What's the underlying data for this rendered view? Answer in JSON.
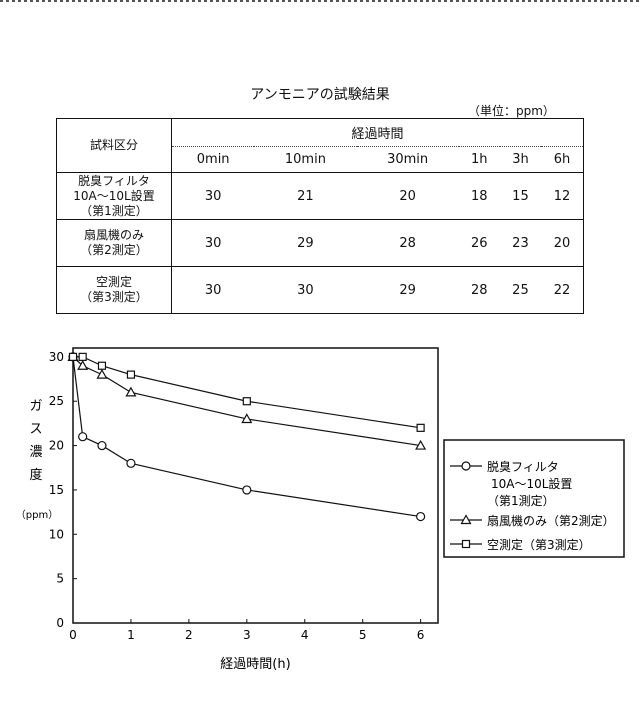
{
  "table": {
    "title": "アンモニアの試験結果",
    "unit_note": "（単位：ppm）",
    "category_header": "試料区分",
    "group_header": "経過時間",
    "columns": [
      "0min",
      "10min",
      "30min",
      "1h",
      "3h",
      "6h"
    ],
    "rows": [
      {
        "label": [
          "脱臭フィルタ",
          "10A～10L設置",
          "（第1測定）"
        ],
        "values": [
          "30",
          "21",
          "20",
          "18",
          "15",
          "12"
        ]
      },
      {
        "label": [
          "扇風機のみ",
          "（第2測定）"
        ],
        "values": [
          "30",
          "29",
          "28",
          "26",
          "23",
          "20"
        ]
      },
      {
        "label": [
          "空測定",
          "（第3測定）"
        ],
        "values": [
          "30",
          "30",
          "29",
          "28",
          "25",
          "22"
        ]
      }
    ]
  },
  "chart_data": {
    "type": "line",
    "xlabel": "経過時間(h)",
    "ylabel": [
      "ガ",
      "ス",
      "濃",
      "度"
    ],
    "ylabel_unit": "（ppm）",
    "xlim": [
      0,
      6.3
    ],
    "ylim": [
      0,
      31
    ],
    "xticks": [
      0,
      1,
      2,
      3,
      4,
      5,
      6
    ],
    "yticks": [
      0,
      5,
      10,
      15,
      20,
      25,
      30
    ],
    "x": [
      0,
      0.167,
      0.5,
      1,
      3,
      6
    ],
    "series": [
      {
        "name": "脱臭フィルタ 10A～10L設置 （第1測定）",
        "legend_lines": [
          "脱臭フィルタ",
          "10A～10L設置",
          "（第1測定）"
        ],
        "marker": "circle",
        "values": [
          30,
          21,
          20,
          18,
          15,
          12
        ]
      },
      {
        "name": "扇風機のみ（第2測定）",
        "legend_lines": [
          "扇風機のみ（第2測定）"
        ],
        "marker": "triangle",
        "values": [
          30,
          29,
          28,
          26,
          23,
          20
        ]
      },
      {
        "name": "空測定（第3測定）",
        "legend_lines": [
          "空測定（第3測定）"
        ],
        "marker": "square",
        "values": [
          30,
          30,
          29,
          28,
          25,
          22
        ]
      }
    ]
  }
}
